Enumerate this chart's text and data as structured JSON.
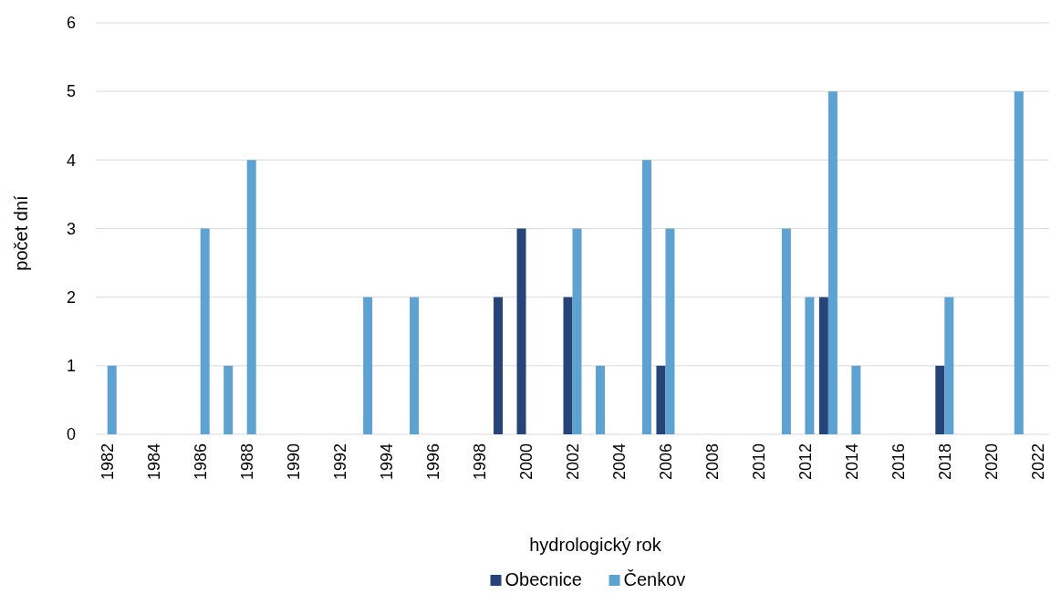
{
  "chart_data": {
    "type": "bar",
    "xlabel": "hydrologický rok",
    "ylabel": "počet dní",
    "categories": [
      "1982",
      null,
      "1984",
      null,
      "1986",
      null,
      "1988",
      null,
      "1990",
      null,
      "1992",
      null,
      "1994",
      null,
      "1996",
      null,
      "1998",
      null,
      "2000",
      null,
      "2002",
      null,
      "2004",
      null,
      "2006",
      null,
      "2008",
      null,
      "2010",
      null,
      "2012",
      null,
      "2014",
      null,
      "2016",
      null,
      "2018",
      null,
      "2020",
      null,
      "2022"
    ],
    "series": [
      {
        "name": "Obecnice",
        "color": "#264478",
        "values": [
          0,
          0,
          0,
          0,
          0,
          0,
          0,
          0,
          0,
          0,
          0,
          0,
          0,
          0,
          0,
          0,
          0,
          2,
          3,
          0,
          2,
          0,
          0,
          0,
          1,
          0,
          0,
          0,
          0,
          0,
          0,
          2,
          0,
          0,
          0,
          0,
          1,
          0,
          0,
          0,
          0
        ]
      },
      {
        "name": "Čenkov",
        "color": "#5ea2d2",
        "values": [
          1,
          0,
          0,
          0,
          3,
          1,
          4,
          0,
          0,
          0,
          0,
          2,
          0,
          2,
          0,
          0,
          0,
          0,
          0,
          0,
          3,
          1,
          0,
          4,
          3,
          0,
          0,
          0,
          0,
          3,
          2,
          5,
          1,
          0,
          0,
          0,
          2,
          0,
          0,
          5,
          0
        ]
      }
    ],
    "ylim": [
      0,
      6
    ],
    "yticks": [
      0,
      1,
      2,
      3,
      4,
      5,
      6
    ],
    "grid": "y",
    "legend": "bottom"
  }
}
